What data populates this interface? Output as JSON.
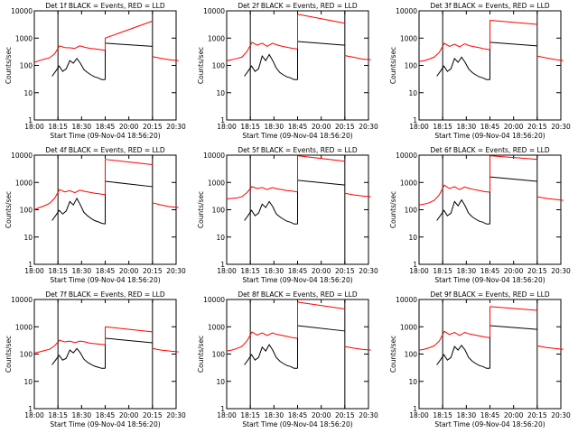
{
  "colors": {
    "events": "#000000",
    "lld": "#ff0000",
    "frame": "#000000",
    "background": "#ffffff"
  },
  "shared": {
    "xlabel": "Start Time (09-Nov-04 18:56:20)",
    "ylabel": "Counts/sec",
    "x_ticks": [
      "18:00",
      "18:15",
      "18:30",
      "18:45",
      "20:00",
      "20:15",
      "20:30"
    ],
    "y_ticks": [
      "1",
      "10",
      "100",
      "1000",
      "10000"
    ],
    "ylim": [
      1,
      10000
    ],
    "yscale": "log",
    "vertical_markers_at_ticks": [
      "18:15",
      "20:15"
    ]
  },
  "chart_data": [
    {
      "type": "line",
      "title": "Det 1f BLACK = Events, RED = LLD",
      "detector": "1f",
      "series": [
        {
          "name": "Events",
          "color": "#000000",
          "start_tick": 0.75,
          "values": [
            40,
            60,
            95,
            60,
            75,
            150,
            120,
            180,
            120,
            70,
            55,
            45,
            38,
            35,
            30,
            30
          ]
        },
        {
          "name": "LLD",
          "color": "#ff0000",
          "start_tick": 0,
          "values": [
            130,
            150,
            170,
            190,
            260,
            520,
            450,
            440,
            420,
            520,
            460,
            420,
            400,
            380,
            360
          ]
        }
      ],
      "lld_high_segment": {
        "start": 1000,
        "end": 4200
      },
      "events_high_segment": {
        "start": 650,
        "end": 500
      },
      "lld_tail": [
        210,
        180,
        160,
        150
      ]
    },
    {
      "type": "line",
      "title": "Det 2f BLACK = Events, RED = LLD",
      "detector": "2f",
      "series": [
        {
          "name": "Events",
          "color": "#000000",
          "start_tick": 0.75,
          "values": [
            40,
            60,
            95,
            60,
            75,
            220,
            150,
            250,
            150,
            80,
            55,
            45,
            38,
            35,
            30,
            30
          ]
        },
        {
          "name": "LLD",
          "color": "#ff0000",
          "start_tick": 0,
          "values": [
            150,
            160,
            180,
            200,
            320,
            700,
            550,
            650,
            500,
            650,
            560,
            500,
            460,
            420,
            400
          ]
        }
      ],
      "lld_high_segment": {
        "start": 7500,
        "end": 3500
      },
      "events_high_segment": {
        "start": 750,
        "end": 550
      },
      "lld_tail": [
        230,
        200,
        170,
        160
      ]
    },
    {
      "type": "line",
      "title": "Det 3f BLACK = Events, RED = LLD",
      "detector": "3f",
      "series": [
        {
          "name": "Events",
          "color": "#000000",
          "start_tick": 0.75,
          "values": [
            40,
            60,
            95,
            60,
            75,
            180,
            130,
            200,
            130,
            75,
            55,
            45,
            38,
            35,
            30,
            30
          ]
        },
        {
          "name": "LLD",
          "color": "#ff0000",
          "start_tick": 0,
          "values": [
            140,
            150,
            170,
            200,
            300,
            650,
            500,
            600,
            480,
            620,
            520,
            480,
            440,
            400,
            380
          ]
        }
      ],
      "lld_high_segment": {
        "start": 4500,
        "end": 3200
      },
      "events_high_segment": {
        "start": 700,
        "end": 520
      },
      "lld_tail": [
        220,
        190,
        165,
        150
      ]
    },
    {
      "type": "line",
      "title": "Det 4f BLACK = Events, RED = LLD",
      "detector": "4f",
      "series": [
        {
          "name": "Events",
          "color": "#000000",
          "start_tick": 0.75,
          "values": [
            40,
            60,
            95,
            70,
            90,
            200,
            150,
            260,
            150,
            80,
            60,
            48,
            40,
            36,
            32,
            30
          ]
        },
        {
          "name": "LLD",
          "color": "#ff0000",
          "start_tick": 0,
          "values": [
            100,
            120,
            140,
            170,
            260,
            550,
            450,
            500,
            420,
            520,
            470,
            430,
            400,
            380,
            360
          ]
        }
      ],
      "lld_high_segment": {
        "start": 7000,
        "end": 4500
      },
      "events_high_segment": {
        "start": 1100,
        "end": 700
      },
      "lld_tail": [
        180,
        150,
        130,
        120
      ]
    },
    {
      "type": "line",
      "title": "Det 5f BLACK = Events, RED = LLD",
      "detector": "5f",
      "series": [
        {
          "name": "Events",
          "color": "#000000",
          "start_tick": 0.75,
          "values": [
            40,
            60,
            95,
            60,
            75,
            160,
            120,
            200,
            130,
            70,
            55,
            45,
            38,
            35,
            30,
            30
          ]
        },
        {
          "name": "LLD",
          "color": "#ff0000",
          "start_tick": 0,
          "values": [
            250,
            260,
            270,
            300,
            420,
            700,
            600,
            650,
            550,
            650,
            580,
            540,
            500,
            480,
            450
          ]
        }
      ],
      "lld_high_segment": {
        "start": 9500,
        "end": 6000
      },
      "events_high_segment": {
        "start": 1200,
        "end": 800
      },
      "lld_tail": [
        400,
        350,
        320,
        300
      ]
    },
    {
      "type": "line",
      "title": "Det 6f BLACK = Events, RED = LLD",
      "detector": "6f",
      "series": [
        {
          "name": "Events",
          "color": "#000000",
          "start_tick": 0.75,
          "values": [
            40,
            60,
            95,
            60,
            75,
            200,
            140,
            230,
            140,
            75,
            55,
            45,
            38,
            35,
            30,
            30
          ]
        },
        {
          "name": "LLD",
          "color": "#ff0000",
          "start_tick": 0,
          "values": [
            150,
            160,
            180,
            220,
            350,
            800,
            600,
            700,
            550,
            680,
            600,
            540,
            500,
            460,
            440
          ]
        }
      ],
      "lld_high_segment": {
        "start": 9500,
        "end": 7000
      },
      "events_high_segment": {
        "start": 1600,
        "end": 1100
      },
      "lld_tail": [
        300,
        260,
        240,
        220
      ]
    },
    {
      "type": "line",
      "title": "Det 7f BLACK = Events, RED = LLD",
      "detector": "7f",
      "series": [
        {
          "name": "Events",
          "color": "#000000",
          "start_tick": 0.75,
          "values": [
            40,
            60,
            90,
            60,
            70,
            140,
            110,
            160,
            110,
            65,
            50,
            42,
            36,
            33,
            30,
            30
          ]
        },
        {
          "name": "LLD",
          "color": "#ff0000",
          "start_tick": 0,
          "values": [
            110,
            120,
            135,
            150,
            200,
            320,
            280,
            300,
            260,
            300,
            280,
            250,
            240,
            230,
            220
          ]
        }
      ],
      "lld_high_segment": {
        "start": 1000,
        "end": 650
      },
      "events_high_segment": {
        "start": 380,
        "end": 260
      },
      "lld_tail": [
        160,
        140,
        130,
        120
      ]
    },
    {
      "type": "line",
      "title": "Det 8f BLACK = Events, RED = LLD",
      "detector": "8f",
      "series": [
        {
          "name": "Events",
          "color": "#000000",
          "start_tick": 0.75,
          "values": [
            40,
            60,
            95,
            60,
            75,
            180,
            130,
            220,
            140,
            75,
            55,
            45,
            38,
            35,
            30,
            30
          ]
        },
        {
          "name": "LLD",
          "color": "#ff0000",
          "start_tick": 0,
          "values": [
            130,
            140,
            160,
            190,
            300,
            650,
            500,
            600,
            480,
            600,
            520,
            480,
            440,
            400,
            380
          ]
        }
      ],
      "lld_high_segment": {
        "start": 8000,
        "end": 4500
      },
      "events_high_segment": {
        "start": 1100,
        "end": 700
      },
      "lld_tail": [
        190,
        165,
        150,
        140
      ]
    },
    {
      "type": "line",
      "title": "Det 9f BLACK = Events, RED = LLD",
      "detector": "9f",
      "series": [
        {
          "name": "Events",
          "color": "#000000",
          "start_tick": 0.75,
          "values": [
            40,
            60,
            95,
            60,
            75,
            190,
            140,
            210,
            140,
            75,
            55,
            45,
            38,
            35,
            30,
            30
          ]
        },
        {
          "name": "LLD",
          "color": "#ff0000",
          "start_tick": 0,
          "values": [
            140,
            150,
            170,
            200,
            300,
            680,
            520,
            620,
            480,
            620,
            540,
            500,
            460,
            420,
            400
          ]
        }
      ],
      "lld_high_segment": {
        "start": 5500,
        "end": 4000
      },
      "events_high_segment": {
        "start": 1100,
        "end": 800
      },
      "lld_tail": [
        200,
        175,
        160,
        150
      ]
    }
  ]
}
